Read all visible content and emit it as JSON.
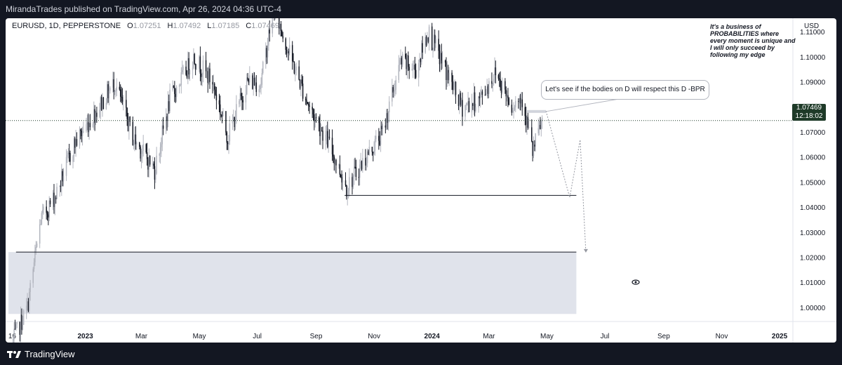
{
  "header": {
    "published": "MirandaTrades published on TradingView.com, Apr 26, 2024 04:36 UTC-4"
  },
  "symbol": {
    "title": "EURUSD, 1D, PEPPERSTONE",
    "open_label": "O",
    "open": "1.07251",
    "high_label": "H",
    "high": "1.07492",
    "low_label": "L",
    "low": "1.07185",
    "close_label": "C",
    "close": "1.07469"
  },
  "price_tag": {
    "price": "1.07469",
    "countdown": "12:18:02"
  },
  "annotations": {
    "quote": "It's a business of PROBABILITIES where every moment is unique and I will only succeed by following my edge",
    "callout": "Let's see if the bodies on D will respect this D -BPR"
  },
  "footer": {
    "brand": "TradingView"
  },
  "colors": {
    "background": "#ffffff",
    "frame": "#131722",
    "candle_up": "#b2b5be",
    "candle_down": "#131722",
    "last_price": "#1e3a28",
    "zone": "#e0e3eb"
  },
  "chart_data": {
    "type": "candlestick",
    "currency": "USD",
    "y_ticks": [
      "1.11000",
      "1.10000",
      "1.09000",
      "1.08000",
      "1.07000",
      "1.06000",
      "1.05000",
      "1.04000",
      "1.03000",
      "1.02000",
      "1.01000",
      "1.00000"
    ],
    "y_tick_values": [
      1.11,
      1.1,
      1.09,
      1.08,
      1.07,
      1.06,
      1.05,
      1.04,
      1.03,
      1.02,
      1.01,
      1.0
    ],
    "ylim": [
      0.9945,
      1.1155
    ],
    "x_ticks": [
      "16",
      "2023",
      "Mar",
      "May",
      "Jul",
      "Sep",
      "Nov",
      "2024",
      "Mar",
      "May",
      "Jul",
      "Sep",
      "Nov",
      "2025"
    ],
    "x_tick_dates": [
      "2022-10-16",
      "2023-01-01",
      "2023-03-01",
      "2023-05-01",
      "2023-07-01",
      "2023-09-01",
      "2023-11-01",
      "2024-01-01",
      "2024-03-01",
      "2024-05-01",
      "2024-07-01",
      "2024-09-01",
      "2024-11-01",
      "2025-01-01"
    ],
    "xlim": [
      "2022-10-12",
      "2025-01-15"
    ],
    "last_price": 1.07469,
    "trend_path": [
      [
        "2022-10-15",
        0.985
      ],
      [
        "2022-11-01",
        1.0
      ],
      [
        "2022-11-15",
        1.035
      ],
      [
        "2022-12-01",
        1.045
      ],
      [
        "2022-12-20",
        1.065
      ],
      [
        "2023-01-15",
        1.08
      ],
      [
        "2023-02-01",
        1.09
      ],
      [
        "2023-02-20",
        1.068
      ],
      [
        "2023-03-15",
        1.055
      ],
      [
        "2023-03-31",
        1.083
      ],
      [
        "2023-04-25",
        1.1
      ],
      [
        "2023-05-15",
        1.09
      ],
      [
        "2023-05-31",
        1.068
      ],
      [
        "2023-06-20",
        1.09
      ],
      [
        "2023-07-05",
        1.09
      ],
      [
        "2023-07-18",
        1.12
      ],
      [
        "2023-08-05",
        1.1
      ],
      [
        "2023-08-25",
        1.08
      ],
      [
        "2023-09-15",
        1.065
      ],
      [
        "2023-10-03",
        1.048
      ],
      [
        "2023-10-20",
        1.058
      ],
      [
        "2023-11-10",
        1.07
      ],
      [
        "2023-11-29",
        1.098
      ],
      [
        "2023-12-15",
        1.095
      ],
      [
        "2023-12-28",
        1.11
      ],
      [
        "2024-01-15",
        1.095
      ],
      [
        "2024-02-01",
        1.08
      ],
      [
        "2024-02-20",
        1.083
      ],
      [
        "2024-03-08",
        1.094
      ],
      [
        "2024-03-25",
        1.081
      ],
      [
        "2024-04-05",
        1.084
      ],
      [
        "2024-04-16",
        1.062
      ],
      [
        "2024-04-26",
        1.0747
      ]
    ],
    "horizontal_levels": [
      {
        "price": 1.0448,
        "from": "2023-10-01",
        "to": "2024-06-01"
      },
      {
        "price": 1.0222,
        "from": "2022-10-20",
        "to": "2024-06-01"
      }
    ],
    "zone": {
      "top": 1.0222,
      "bottom": 0.9975,
      "from": "2022-10-12",
      "to": "2024-06-01"
    },
    "bpr_level": {
      "price": 1.0783,
      "from": "2024-04-10",
      "to": "2024-04-30"
    },
    "projection": [
      [
        "2024-04-30",
        1.0785
      ],
      [
        "2024-05-25",
        1.044
      ],
      [
        "2024-06-05",
        1.067
      ],
      [
        "2024-06-11",
        1.022
      ]
    ]
  }
}
